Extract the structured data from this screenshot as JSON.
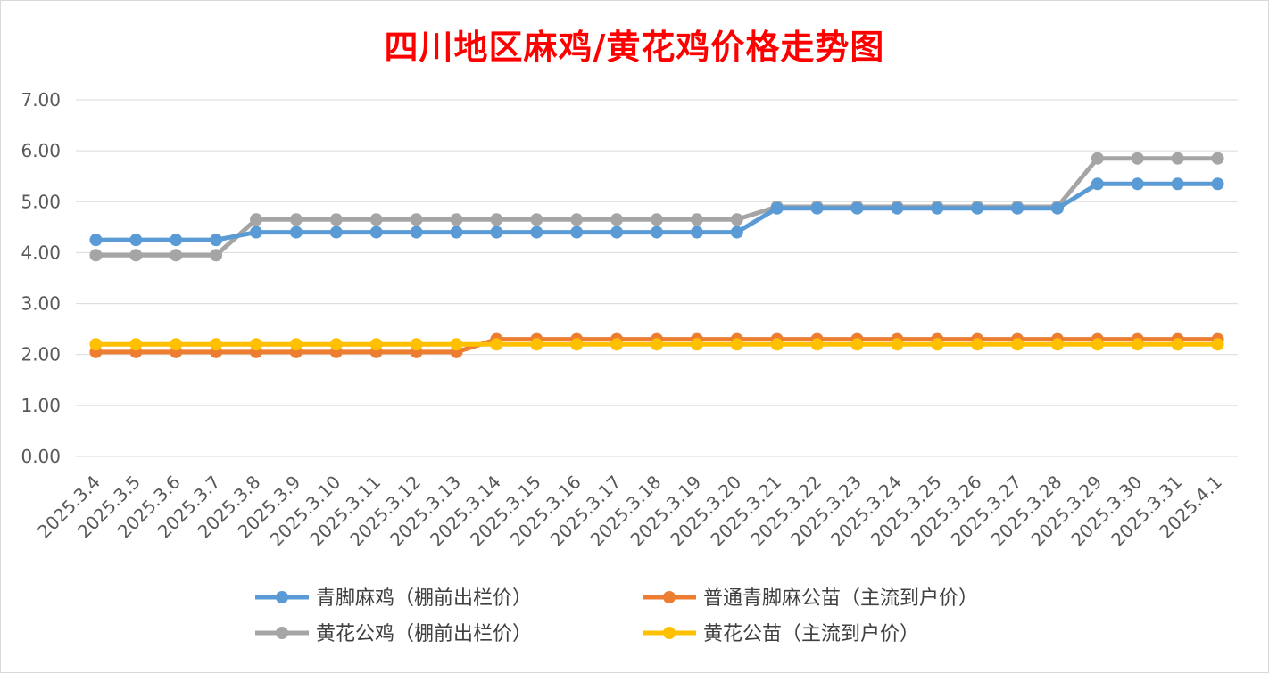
{
  "chart_data": {
    "type": "line",
    "title": "四川地区麻鸡/黄花鸡价格走势图",
    "xlabel": "",
    "ylabel": "",
    "ylim": [
      0,
      7
    ],
    "ytick_step": 1,
    "ytick_format": "0.00",
    "grid": true,
    "legend_position": "bottom",
    "categories": [
      "2025.3.4",
      "2025.3.5",
      "2025.3.6",
      "2025.3.7",
      "2025.3.8",
      "2025.3.9",
      "2025.3.10",
      "2025.3.11",
      "2025.3.12",
      "2025.3.13",
      "2025.3.14",
      "2025.3.15",
      "2025.3.16",
      "2025.3.17",
      "2025.3.18",
      "2025.3.19",
      "2025.3.20",
      "2025.3.21",
      "2025.3.22",
      "2025.3.23",
      "2025.3.24",
      "2025.3.25",
      "2025.3.26",
      "2025.3.27",
      "2025.3.28",
      "2025.3.29",
      "2025.3.30",
      "2025.3.31",
      "2025.4.1"
    ],
    "series": [
      {
        "name": "青脚麻鸡（棚前出栏价）",
        "color": "#5b9bd5",
        "values": [
          4.25,
          4.25,
          4.25,
          4.25,
          4.4,
          4.4,
          4.4,
          4.4,
          4.4,
          4.4,
          4.4,
          4.4,
          4.4,
          4.4,
          4.4,
          4.4,
          4.4,
          4.87,
          4.87,
          4.87,
          4.87,
          4.87,
          4.87,
          4.87,
          4.87,
          5.35,
          5.35,
          5.35,
          5.35
        ]
      },
      {
        "name": "普通青脚麻公苗（主流到户价）",
        "color": "#ed7d31",
        "values": [
          2.05,
          2.05,
          2.05,
          2.05,
          2.05,
          2.05,
          2.05,
          2.05,
          2.05,
          2.05,
          2.3,
          2.3,
          2.3,
          2.3,
          2.3,
          2.3,
          2.3,
          2.3,
          2.3,
          2.3,
          2.3,
          2.3,
          2.3,
          2.3,
          2.3,
          2.3,
          2.3,
          2.3,
          2.3
        ]
      },
      {
        "name": "黄花公鸡（棚前出栏价）",
        "color": "#a5a5a5",
        "values": [
          3.95,
          3.95,
          3.95,
          3.95,
          4.65,
          4.65,
          4.65,
          4.65,
          4.65,
          4.65,
          4.65,
          4.65,
          4.65,
          4.65,
          4.65,
          4.65,
          4.65,
          4.9,
          4.9,
          4.9,
          4.9,
          4.9,
          4.9,
          4.9,
          4.9,
          5.85,
          5.85,
          5.85,
          5.85
        ]
      },
      {
        "name": "黄花公苗（主流到户价）",
        "color": "#ffc000",
        "values": [
          2.2,
          2.2,
          2.2,
          2.2,
          2.2,
          2.2,
          2.2,
          2.2,
          2.2,
          2.2,
          2.2,
          2.2,
          2.2,
          2.2,
          2.2,
          2.2,
          2.2,
          2.2,
          2.2,
          2.2,
          2.2,
          2.2,
          2.2,
          2.2,
          2.2,
          2.2,
          2.2,
          2.2,
          2.2
        ]
      }
    ],
    "draw_order": [
      2,
      0,
      1,
      3
    ]
  }
}
